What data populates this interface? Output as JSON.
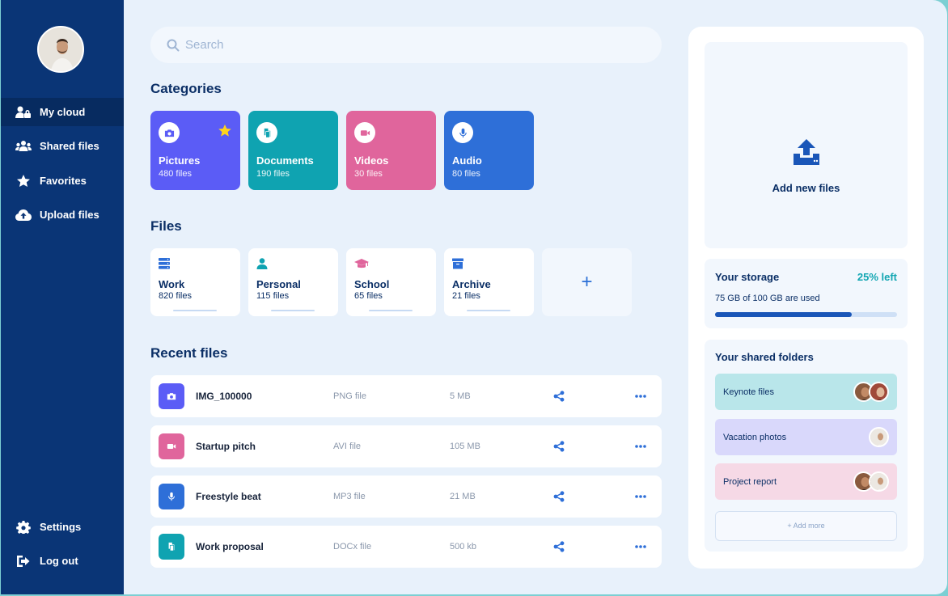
{
  "sidebar": {
    "items": [
      {
        "label": "My cloud",
        "icon": "user-lock-icon",
        "active": true
      },
      {
        "label": "Shared files",
        "icon": "users-icon"
      },
      {
        "label": "Favorites",
        "icon": "star-icon"
      },
      {
        "label": "Upload files",
        "icon": "cloud-upload-icon"
      }
    ],
    "bottom": [
      {
        "label": "Settings",
        "icon": "gear-icon"
      },
      {
        "label": "Log out",
        "icon": "logout-icon"
      }
    ]
  },
  "search": {
    "placeholder": "Search"
  },
  "categories": {
    "title": "Categories",
    "items": [
      {
        "name": "Pictures",
        "count": "480 files",
        "color": "#5b5cf6",
        "icon": "camera-icon"
      },
      {
        "name": "Documents",
        "count": "190 files",
        "color": "#0fa3b1",
        "icon": "document-icon"
      },
      {
        "name": "Videos",
        "count": "30 files",
        "color": "#e0659c",
        "icon": "video-icon"
      },
      {
        "name": "Audio",
        "count": "80 files",
        "color": "#2e6fd8",
        "icon": "microphone-icon"
      }
    ]
  },
  "files": {
    "title": "Files",
    "items": [
      {
        "name": "Work",
        "count": "820 files",
        "icon": "server-icon",
        "color": "#2e6fd8"
      },
      {
        "name": "Personal",
        "count": "115 files",
        "icon": "user-icon",
        "color": "#0fa3b1"
      },
      {
        "name": "School",
        "count": "65 files",
        "icon": "graduation-cap-icon",
        "color": "#e0659c"
      },
      {
        "name": "Archive",
        "count": "21 files",
        "icon": "archive-box-icon",
        "color": "#2e6fd8"
      }
    ],
    "add_label": "+"
  },
  "recent": {
    "title": "Recent files",
    "rows": [
      {
        "name": "IMG_100000",
        "type": "PNG file",
        "size": "5 MB",
        "color": "#5b5cf6",
        "icon": "camera-icon"
      },
      {
        "name": "Startup pitch",
        "type": "AVI file",
        "size": "105 MB",
        "color": "#e0659c",
        "icon": "video-icon"
      },
      {
        "name": "Freestyle beat",
        "type": "MP3 file",
        "size": "21 MB",
        "color": "#2e6fd8",
        "icon": "microphone-icon"
      },
      {
        "name": "Work proposal",
        "type": "DOCx file",
        "size": "500 kb",
        "color": "#0fa3b1",
        "icon": "document-icon"
      }
    ]
  },
  "upload": {
    "label": "Add new files"
  },
  "storage": {
    "title": "Your storage",
    "left": "25% left",
    "used_text": "75 GB of 100 GB are used",
    "used_fraction": 0.75
  },
  "shared": {
    "title": "Your shared folders",
    "folders": [
      {
        "name": "Keynote files",
        "color": "#b9e6ea"
      },
      {
        "name": "Vacation photos",
        "color": "#d9d8fb"
      },
      {
        "name": "Project report",
        "color": "#f6d9e6"
      }
    ],
    "add_more": "+ Add more"
  }
}
